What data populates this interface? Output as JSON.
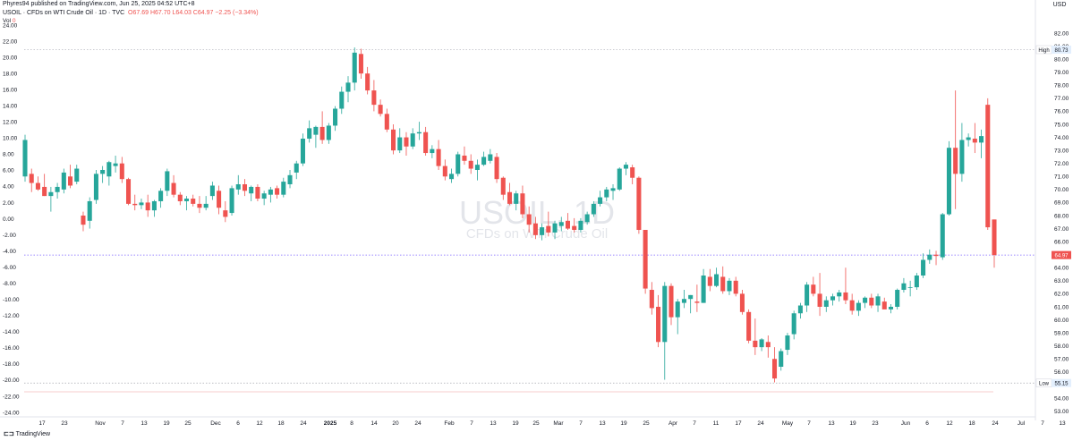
{
  "header": {
    "published": "Phyres94 published on TradingView.com, Jun 25, 2025 04:52 UTC+8",
    "symbol_line_a": "USOIL · CFDs on WTI Crude Oil · 1D · TVC",
    "ohlc": "O67.69 H67.70 L64.03 C64.97 −2.25 (−3.34%)",
    "vol_prefix": "Vol",
    "vol_value": "0",
    "vol_change": "Vol2 −2.25 (−3.34%)"
  },
  "currency": "USD",
  "watermark": {
    "symbol": "USOIL, 1D",
    "description": "CFDs on WTI Crude Oil"
  },
  "footer": "TradingView",
  "colors": {
    "up": "#26a69a",
    "down": "#ef5350",
    "price_line": "#7b61ff",
    "hl_line": "#9598a1"
  },
  "price_labels": {
    "high_tag": "High",
    "high_value": "80.73",
    "low_tag": "Low",
    "low_value": "55.15",
    "last_value": "64.97"
  },
  "chart_data": {
    "type": "candlestick",
    "title": "USOIL, 1D",
    "left_axis": {
      "ticks": [
        "24.00",
        "22.00",
        "20.00",
        "18.00",
        "16.00",
        "14.00",
        "12.00",
        "10.00",
        "8.00",
        "6.00",
        "4.00",
        "2.00",
        "0.00",
        "-2.00",
        "-4.00",
        "-6.00",
        "-8.00",
        "-10.00",
        "-12.00",
        "-14.00",
        "-16.00",
        "-18.00",
        "-20.00",
        "-22.00",
        "-24.00"
      ],
      "range": [
        -24,
        24
      ]
    },
    "right_axis": {
      "ticks": [
        "82.00",
        "81.00",
        "80.00",
        "79.00",
        "78.00",
        "77.00",
        "76.00",
        "75.00",
        "74.00",
        "73.00",
        "72.00",
        "71.00",
        "70.00",
        "69.00",
        "68.00",
        "67.00",
        "66.00",
        "65.00",
        "64.00",
        "63.00",
        "62.00",
        "61.00",
        "60.00",
        "59.00",
        "58.00",
        "57.00",
        "56.00",
        "55.00",
        "54.00",
        "53.00"
      ],
      "range": [
        53,
        82
      ]
    },
    "x_ticks": [
      "17",
      "23",
      "Nov",
      "7",
      "13",
      "19",
      "25",
      "Dec",
      "6",
      "12",
      "18",
      "24",
      "2025",
      "8",
      "14",
      "20",
      "24",
      "Feb",
      "7",
      "13",
      "19",
      "25",
      "Mar",
      "7",
      "13",
      "19",
      "25",
      "Apr",
      "7",
      "11",
      "17",
      "24",
      "May",
      "7",
      "13",
      "19",
      "23",
      "Jun",
      "6",
      "12",
      "18",
      "24",
      "Jul",
      "7",
      "13"
    ],
    "levels": {
      "high": 80.73,
      "low": 55.15,
      "last": 64.97
    },
    "candles": [
      {
        "o": 71.0,
        "h": 74.2,
        "l": 70.6,
        "c": 73.8
      },
      {
        "o": 71.2,
        "h": 71.6,
        "l": 69.8,
        "c": 70.5
      },
      {
        "o": 70.5,
        "h": 71.0,
        "l": 69.9,
        "c": 70.0
      },
      {
        "o": 70.2,
        "h": 71.2,
        "l": 69.5,
        "c": 69.5
      },
      {
        "o": 69.5,
        "h": 70.2,
        "l": 68.3,
        "c": 69.8
      },
      {
        "o": 69.8,
        "h": 70.5,
        "l": 69.3,
        "c": 70.2
      },
      {
        "o": 70.0,
        "h": 71.6,
        "l": 69.7,
        "c": 71.3
      },
      {
        "o": 71.0,
        "h": 71.9,
        "l": 70.1,
        "c": 70.3
      },
      {
        "o": 70.6,
        "h": 71.9,
        "l": 70.4,
        "c": 71.6
      },
      {
        "o": 68.0,
        "h": 68.3,
        "l": 66.8,
        "c": 67.3
      },
      {
        "o": 67.6,
        "h": 69.4,
        "l": 67.0,
        "c": 69.1
      },
      {
        "o": 69.2,
        "h": 71.5,
        "l": 68.9,
        "c": 71.2
      },
      {
        "o": 71.2,
        "h": 71.8,
        "l": 70.5,
        "c": 71.5
      },
      {
        "o": 71.0,
        "h": 72.2,
        "l": 70.3,
        "c": 72.1
      },
      {
        "o": 71.8,
        "h": 72.6,
        "l": 71.3,
        "c": 72.0
      },
      {
        "o": 72.0,
        "h": 72.5,
        "l": 70.5,
        "c": 70.8
      },
      {
        "o": 70.8,
        "h": 70.9,
        "l": 68.8,
        "c": 68.9
      },
      {
        "o": 68.9,
        "h": 69.6,
        "l": 68.4,
        "c": 68.8
      },
      {
        "o": 68.8,
        "h": 69.3,
        "l": 68.5,
        "c": 69.0
      },
      {
        "o": 69.0,
        "h": 69.6,
        "l": 67.9,
        "c": 68.4
      },
      {
        "o": 68.4,
        "h": 69.2,
        "l": 67.9,
        "c": 69.1
      },
      {
        "o": 69.1,
        "h": 70.1,
        "l": 68.6,
        "c": 69.9
      },
      {
        "o": 69.9,
        "h": 71.6,
        "l": 69.5,
        "c": 71.4
      },
      {
        "o": 70.5,
        "h": 71.1,
        "l": 69.4,
        "c": 69.6
      },
      {
        "o": 69.6,
        "h": 69.8,
        "l": 68.8,
        "c": 69.1
      },
      {
        "o": 69.1,
        "h": 69.5,
        "l": 68.4,
        "c": 69.3
      },
      {
        "o": 69.3,
        "h": 69.6,
        "l": 68.7,
        "c": 68.9
      },
      {
        "o": 68.9,
        "h": 69.5,
        "l": 68.2,
        "c": 68.6
      },
      {
        "o": 68.6,
        "h": 69.5,
        "l": 68.4,
        "c": 68.9
      },
      {
        "o": 69.5,
        "h": 70.6,
        "l": 69.2,
        "c": 70.3
      },
      {
        "o": 69.9,
        "h": 70.3,
        "l": 68.1,
        "c": 68.6
      },
      {
        "o": 68.4,
        "h": 69.1,
        "l": 67.5,
        "c": 67.9
      },
      {
        "o": 68.2,
        "h": 70.3,
        "l": 68.0,
        "c": 70.1
      },
      {
        "o": 70.0,
        "h": 71.1,
        "l": 69.6,
        "c": 70.4
      },
      {
        "o": 70.4,
        "h": 70.8,
        "l": 69.5,
        "c": 69.9
      },
      {
        "o": 69.7,
        "h": 70.3,
        "l": 69.1,
        "c": 70.2
      },
      {
        "o": 70.2,
        "h": 70.4,
        "l": 69.1,
        "c": 69.3
      },
      {
        "o": 69.3,
        "h": 69.9,
        "l": 68.8,
        "c": 69.7
      },
      {
        "o": 69.6,
        "h": 70.2,
        "l": 69.0,
        "c": 70.0
      },
      {
        "o": 70.1,
        "h": 70.3,
        "l": 69.3,
        "c": 69.6
      },
      {
        "o": 69.6,
        "h": 70.9,
        "l": 69.4,
        "c": 70.6
      },
      {
        "o": 70.4,
        "h": 71.5,
        "l": 70.1,
        "c": 71.1
      },
      {
        "o": 71.3,
        "h": 72.2,
        "l": 70.8,
        "c": 72.0
      },
      {
        "o": 72.0,
        "h": 74.3,
        "l": 71.8,
        "c": 73.9
      },
      {
        "o": 73.9,
        "h": 75.3,
        "l": 73.6,
        "c": 74.7
      },
      {
        "o": 74.2,
        "h": 74.9,
        "l": 73.2,
        "c": 74.8
      },
      {
        "o": 74.8,
        "h": 76.0,
        "l": 73.5,
        "c": 73.8
      },
      {
        "o": 73.8,
        "h": 75.1,
        "l": 73.5,
        "c": 74.9
      },
      {
        "o": 74.9,
        "h": 76.4,
        "l": 74.5,
        "c": 76.2
      },
      {
        "o": 76.2,
        "h": 77.9,
        "l": 75.8,
        "c": 77.5
      },
      {
        "o": 77.5,
        "h": 78.7,
        "l": 76.7,
        "c": 78.2
      },
      {
        "o": 78.2,
        "h": 80.9,
        "l": 77.6,
        "c": 80.5
      },
      {
        "o": 80.4,
        "h": 80.8,
        "l": 78.5,
        "c": 78.9
      },
      {
        "o": 78.9,
        "h": 79.4,
        "l": 77.3,
        "c": 77.6
      },
      {
        "o": 77.6,
        "h": 78.4,
        "l": 76.0,
        "c": 76.5
      },
      {
        "o": 76.5,
        "h": 76.9,
        "l": 75.6,
        "c": 75.8
      },
      {
        "o": 75.8,
        "h": 76.2,
        "l": 74.4,
        "c": 74.6
      },
      {
        "o": 74.6,
        "h": 75.0,
        "l": 72.7,
        "c": 73.0
      },
      {
        "o": 73.0,
        "h": 74.7,
        "l": 72.8,
        "c": 74.0
      },
      {
        "o": 74.0,
        "h": 74.4,
        "l": 72.6,
        "c": 73.3
      },
      {
        "o": 73.3,
        "h": 74.7,
        "l": 73.1,
        "c": 74.3
      },
      {
        "o": 74.3,
        "h": 75.2,
        "l": 73.8,
        "c": 74.4
      },
      {
        "o": 74.4,
        "h": 74.8,
        "l": 72.6,
        "c": 72.8
      },
      {
        "o": 72.8,
        "h": 73.4,
        "l": 72.4,
        "c": 73.1
      },
      {
        "o": 73.1,
        "h": 73.8,
        "l": 71.5,
        "c": 71.8
      },
      {
        "o": 71.8,
        "h": 72.3,
        "l": 70.7,
        "c": 71.0
      },
      {
        "o": 70.8,
        "h": 71.6,
        "l": 70.5,
        "c": 71.2
      },
      {
        "o": 71.2,
        "h": 72.9,
        "l": 71.0,
        "c": 72.7
      },
      {
        "o": 72.6,
        "h": 73.3,
        "l": 71.9,
        "c": 72.2
      },
      {
        "o": 72.2,
        "h": 72.7,
        "l": 71.2,
        "c": 71.6
      },
      {
        "o": 71.5,
        "h": 72.3,
        "l": 70.7,
        "c": 71.9
      },
      {
        "o": 71.9,
        "h": 72.9,
        "l": 71.8,
        "c": 72.5
      },
      {
        "o": 72.2,
        "h": 73.1,
        "l": 72.0,
        "c": 72.7
      },
      {
        "o": 72.5,
        "h": 72.8,
        "l": 70.5,
        "c": 70.8
      },
      {
        "o": 70.9,
        "h": 71.0,
        "l": 69.2,
        "c": 69.6
      },
      {
        "o": 69.8,
        "h": 70.5,
        "l": 68.8,
        "c": 68.9
      },
      {
        "o": 68.9,
        "h": 69.9,
        "l": 68.4,
        "c": 69.7
      },
      {
        "o": 69.7,
        "h": 70.3,
        "l": 67.8,
        "c": 68.1
      },
      {
        "o": 68.1,
        "h": 68.7,
        "l": 66.7,
        "c": 67.3
      },
      {
        "o": 67.4,
        "h": 67.9,
        "l": 66.2,
        "c": 66.5
      },
      {
        "o": 66.5,
        "h": 67.4,
        "l": 66.1,
        "c": 67.1
      },
      {
        "o": 67.2,
        "h": 68.3,
        "l": 66.4,
        "c": 66.7
      },
      {
        "o": 66.7,
        "h": 67.6,
        "l": 66.2,
        "c": 67.4
      },
      {
        "o": 67.2,
        "h": 67.9,
        "l": 66.8,
        "c": 67.5
      },
      {
        "o": 67.6,
        "h": 68.2,
        "l": 66.9,
        "c": 67.0
      },
      {
        "o": 67.2,
        "h": 67.8,
        "l": 66.7,
        "c": 66.9
      },
      {
        "o": 66.9,
        "h": 67.8,
        "l": 66.7,
        "c": 67.6
      },
      {
        "o": 67.5,
        "h": 68.3,
        "l": 67.3,
        "c": 68.1
      },
      {
        "o": 68.1,
        "h": 69.1,
        "l": 67.9,
        "c": 68.9
      },
      {
        "o": 68.9,
        "h": 69.9,
        "l": 68.7,
        "c": 69.4
      },
      {
        "o": 69.4,
        "h": 70.2,
        "l": 69.1,
        "c": 70.0
      },
      {
        "o": 69.9,
        "h": 70.4,
        "l": 69.2,
        "c": 70.1
      },
      {
        "o": 70.0,
        "h": 71.7,
        "l": 69.9,
        "c": 71.6
      },
      {
        "o": 71.6,
        "h": 72.1,
        "l": 71.1,
        "c": 71.9
      },
      {
        "o": 71.7,
        "h": 71.9,
        "l": 70.4,
        "c": 70.9
      },
      {
        "o": 70.9,
        "h": 71.0,
        "l": 66.6,
        "c": 66.9
      },
      {
        "o": 66.9,
        "h": 66.9,
        "l": 62.0,
        "c": 62.4
      },
      {
        "o": 62.3,
        "h": 62.9,
        "l": 60.4,
        "c": 60.9
      },
      {
        "o": 61.0,
        "h": 61.9,
        "l": 57.9,
        "c": 58.3
      },
      {
        "o": 58.3,
        "h": 62.9,
        "l": 55.4,
        "c": 62.6
      },
      {
        "o": 62.6,
        "h": 62.8,
        "l": 59.6,
        "c": 60.2
      },
      {
        "o": 60.2,
        "h": 61.6,
        "l": 58.9,
        "c": 61.4
      },
      {
        "o": 61.3,
        "h": 62.3,
        "l": 60.9,
        "c": 61.6
      },
      {
        "o": 61.6,
        "h": 61.9,
        "l": 60.5,
        "c": 61.9
      },
      {
        "o": 61.4,
        "h": 62.7,
        "l": 60.6,
        "c": 61.3
      },
      {
        "o": 61.3,
        "h": 63.9,
        "l": 61.3,
        "c": 63.4
      },
      {
        "o": 63.3,
        "h": 63.9,
        "l": 62.2,
        "c": 62.6
      },
      {
        "o": 62.6,
        "h": 64.0,
        "l": 62.5,
        "c": 63.5
      },
      {
        "o": 63.3,
        "h": 64.1,
        "l": 62.0,
        "c": 62.2
      },
      {
        "o": 62.2,
        "h": 63.2,
        "l": 61.9,
        "c": 63.0
      },
      {
        "o": 63.0,
        "h": 63.3,
        "l": 61.8,
        "c": 62.0
      },
      {
        "o": 62.0,
        "h": 62.3,
        "l": 60.4,
        "c": 60.6
      },
      {
        "o": 60.6,
        "h": 60.8,
        "l": 58.2,
        "c": 58.4
      },
      {
        "o": 58.4,
        "h": 60.1,
        "l": 57.3,
        "c": 57.9
      },
      {
        "o": 57.9,
        "h": 58.6,
        "l": 57.6,
        "c": 58.5
      },
      {
        "o": 58.3,
        "h": 58.8,
        "l": 57.1,
        "c": 57.9
      },
      {
        "o": 57.0,
        "h": 57.9,
        "l": 55.2,
        "c": 55.5
      },
      {
        "o": 56.4,
        "h": 57.8,
        "l": 56.1,
        "c": 57.6
      },
      {
        "o": 57.7,
        "h": 59.0,
        "l": 57.3,
        "c": 58.8
      },
      {
        "o": 58.9,
        "h": 60.7,
        "l": 58.5,
        "c": 60.5
      },
      {
        "o": 60.5,
        "h": 61.3,
        "l": 60.1,
        "c": 61.1
      },
      {
        "o": 61.1,
        "h": 62.9,
        "l": 60.6,
        "c": 62.7
      },
      {
        "o": 62.7,
        "h": 63.3,
        "l": 61.8,
        "c": 62.0
      },
      {
        "o": 62.0,
        "h": 63.6,
        "l": 60.3,
        "c": 61.0
      },
      {
        "o": 61.0,
        "h": 61.8,
        "l": 60.6,
        "c": 61.5
      },
      {
        "o": 61.5,
        "h": 62.0,
        "l": 61.1,
        "c": 61.8
      },
      {
        "o": 61.8,
        "h": 62.3,
        "l": 61.4,
        "c": 62.1
      },
      {
        "o": 62.1,
        "h": 64.0,
        "l": 61.2,
        "c": 61.5
      },
      {
        "o": 61.5,
        "h": 62.0,
        "l": 60.4,
        "c": 60.7
      },
      {
        "o": 60.7,
        "h": 61.5,
        "l": 60.3,
        "c": 61.3
      },
      {
        "o": 61.3,
        "h": 61.8,
        "l": 60.9,
        "c": 61.7
      },
      {
        "o": 61.7,
        "h": 62.0,
        "l": 60.9,
        "c": 61.1
      },
      {
        "o": 61.1,
        "h": 62.0,
        "l": 60.6,
        "c": 61.8
      },
      {
        "o": 61.4,
        "h": 61.7,
        "l": 60.9,
        "c": 60.8
      },
      {
        "o": 60.8,
        "h": 61.2,
        "l": 60.5,
        "c": 61.0
      },
      {
        "o": 61.0,
        "h": 62.4,
        "l": 60.8,
        "c": 62.3
      },
      {
        "o": 62.3,
        "h": 63.2,
        "l": 62.1,
        "c": 62.8
      },
      {
        "o": 62.5,
        "h": 63.0,
        "l": 61.8,
        "c": 62.5
      },
      {
        "o": 62.5,
        "h": 63.6,
        "l": 62.3,
        "c": 63.4
      },
      {
        "o": 63.4,
        "h": 65.1,
        "l": 63.2,
        "c": 64.6
      },
      {
        "o": 64.6,
        "h": 65.4,
        "l": 64.3,
        "c": 65.0
      },
      {
        "o": 65.0,
        "h": 65.3,
        "l": 64.2,
        "c": 64.9
      },
      {
        "o": 64.8,
        "h": 68.2,
        "l": 64.6,
        "c": 68.1
      },
      {
        "o": 68.1,
        "h": 73.7,
        "l": 68.0,
        "c": 73.2
      },
      {
        "o": 73.2,
        "h": 77.6,
        "l": 68.5,
        "c": 71.2
      },
      {
        "o": 71.2,
        "h": 75.1,
        "l": 70.6,
        "c": 73.8
      },
      {
        "o": 73.8,
        "h": 74.3,
        "l": 73.3,
        "c": 74.0
      },
      {
        "o": 73.9,
        "h": 75.1,
        "l": 72.8,
        "c": 73.6
      },
      {
        "o": 73.6,
        "h": 74.6,
        "l": 72.4,
        "c": 74.1
      },
      {
        "o": 76.5,
        "h": 77.0,
        "l": 66.9,
        "c": 67.1
      },
      {
        "o": 67.7,
        "h": 67.7,
        "l": 64.0,
        "c": 64.97
      }
    ]
  }
}
